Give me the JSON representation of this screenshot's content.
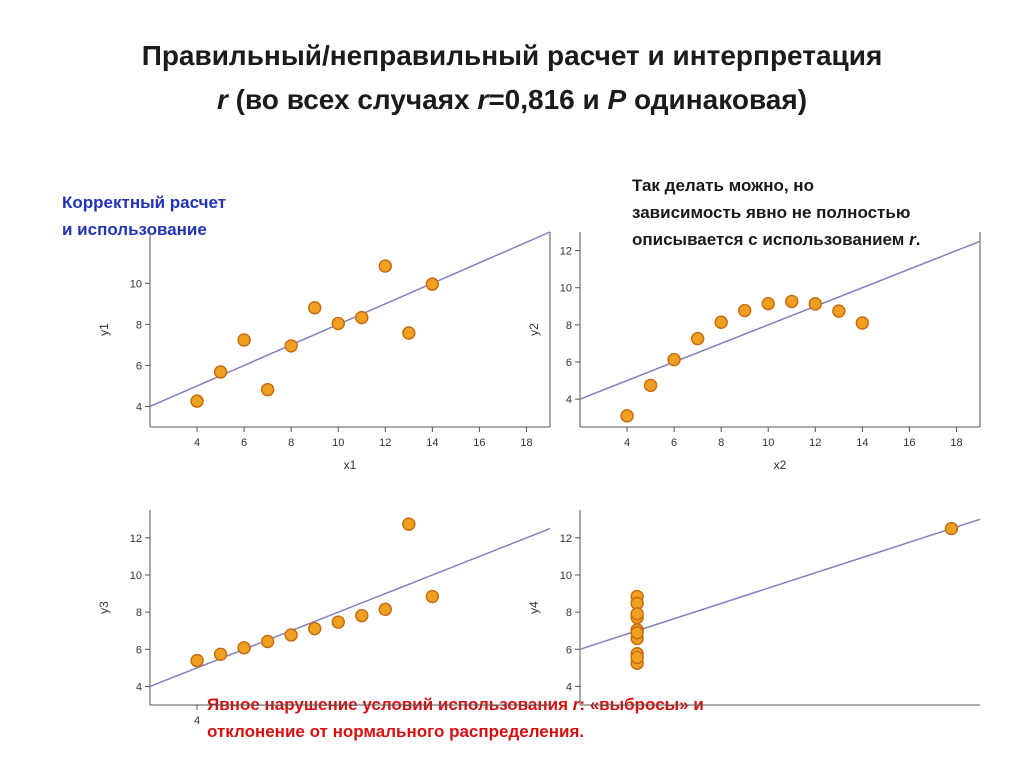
{
  "slide": {
    "title_line1": "Правильный/неправильный расчет и интерпретация",
    "title_line2_parts": [
      "r",
      " (во всех случаях ",
      "r",
      "=0,816 и ",
      "P",
      " одинаковая)"
    ],
    "note_correct": [
      "Корректный расчет",
      "и использование"
    ],
    "note_curve": [
      "Так делать можно, но",
      "зависимость явно не полностью",
      "описывается с использованием ",
      "r",
      "."
    ],
    "note_violation_parts": [
      "Явное нарушение условий использования ",
      "r",
      ": «выбросы» и",
      "отклонение от нормального распределения."
    ]
  },
  "colors": {
    "point_fill": "#f0a020",
    "point_stroke": "#c46a10",
    "regression_line": "#7f80c0",
    "note_blue": "#2233b8",
    "note_red": "#d60f0f"
  },
  "chart_data": [
    {
      "type": "scatter",
      "xlabel": "x1",
      "ylabel": "y1",
      "xlim": [
        2,
        19
      ],
      "ylim": [
        3,
        12.5
      ],
      "xticks": [
        4,
        6,
        8,
        10,
        12,
        14,
        16,
        18
      ],
      "yticks": [
        4,
        6,
        8,
        10
      ],
      "regression": {
        "intercept": 3.0,
        "slope": 0.5
      },
      "x": [
        10,
        8,
        13,
        9,
        11,
        14,
        6,
        4,
        12,
        7,
        5
      ],
      "y": [
        8.04,
        6.95,
        7.58,
        8.81,
        8.33,
        9.96,
        7.24,
        4.26,
        10.84,
        4.82,
        5.68
      ]
    },
    {
      "type": "scatter",
      "xlabel": "x2",
      "ylabel": "y2",
      "xlim": [
        2,
        19
      ],
      "ylim": [
        2.5,
        13
      ],
      "xticks": [
        4,
        6,
        8,
        10,
        12,
        14,
        16,
        18
      ],
      "yticks": [
        4,
        6,
        8,
        10,
        12
      ],
      "regression": {
        "intercept": 3.0,
        "slope": 0.5
      },
      "x": [
        10,
        8,
        13,
        9,
        11,
        14,
        6,
        4,
        12,
        7,
        5
      ],
      "y": [
        9.14,
        8.14,
        8.74,
        8.77,
        9.26,
        8.1,
        6.13,
        3.1,
        9.13,
        7.26,
        4.74
      ]
    },
    {
      "type": "scatter",
      "xlabel": "",
      "ylabel": "y3",
      "xlim": [
        2,
        19
      ],
      "ylim": [
        3,
        13.5
      ],
      "xticks": [
        4
      ],
      "yticks": [
        4,
        6,
        8,
        10,
        12
      ],
      "regression": {
        "intercept": 3.0,
        "slope": 0.5
      },
      "x": [
        10,
        8,
        13,
        9,
        11,
        14,
        6,
        4,
        12,
        7,
        5
      ],
      "y": [
        7.46,
        6.77,
        12.74,
        7.11,
        7.81,
        8.84,
        6.08,
        5.39,
        8.15,
        6.42,
        5.73
      ]
    },
    {
      "type": "scatter",
      "xlabel": "",
      "ylabel": "y4",
      "xlim": [
        6,
        20
      ],
      "ylim": [
        3,
        13.5
      ],
      "xticks": [],
      "yticks": [
        4,
        6,
        8,
        10,
        12
      ],
      "regression": {
        "intercept": 3.0,
        "slope": 0.5
      },
      "x": [
        8,
        8,
        8,
        8,
        8,
        8,
        8,
        19,
        8,
        8,
        8
      ],
      "y": [
        6.58,
        5.76,
        7.71,
        8.84,
        8.47,
        7.04,
        5.25,
        12.5,
        5.56,
        7.91,
        6.89
      ]
    }
  ]
}
